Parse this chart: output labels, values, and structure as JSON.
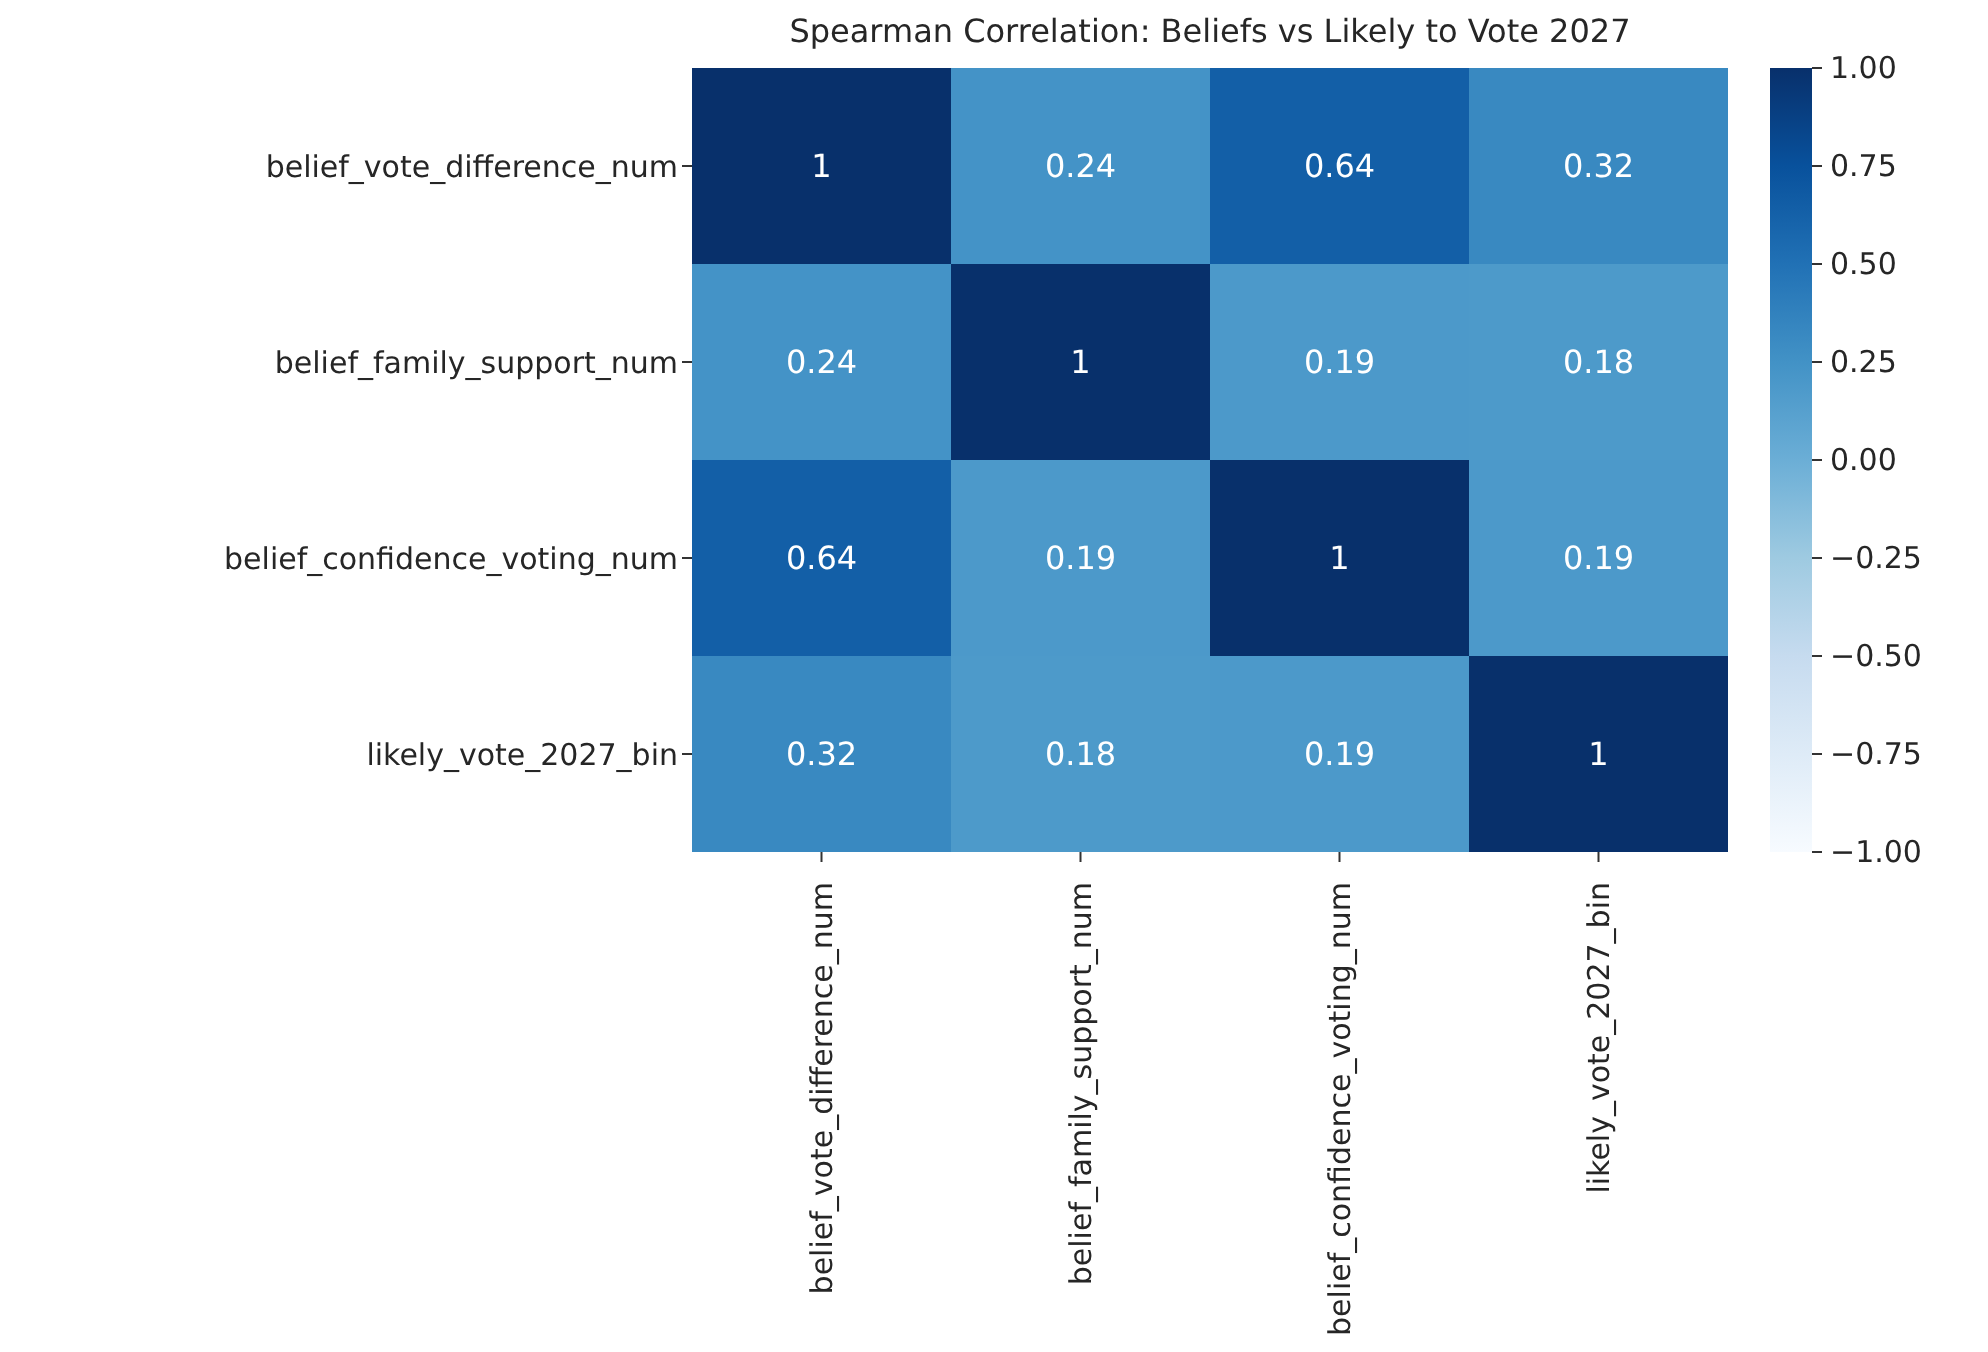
{
  "chart_data": {
    "type": "heatmap",
    "title": "Spearman Correlation: Beliefs vs Likely to Vote 2027",
    "categories": [
      "belief_vote_difference_num",
      "belief_family_support_num",
      "belief_confidence_voting_num",
      "likely_vote_2027_bin"
    ],
    "y_categories": [
      "belief_vote_difference_num",
      "belief_family_support_num",
      "belief_confidence_voting_num",
      "likely_vote_2027_bin"
    ],
    "cells": [
      [
        1,
        0.24,
        0.64,
        0.32
      ],
      [
        0.24,
        1,
        0.19,
        0.18
      ],
      [
        0.64,
        0.19,
        1,
        0.19
      ],
      [
        0.32,
        0.18,
        0.19,
        1
      ]
    ],
    "data_labels": true,
    "clim": [
      -1,
      1
    ],
    "cticks": [
      {
        "value": 1,
        "label": "1.00"
      },
      {
        "value": 0.75,
        "label": "0.75"
      },
      {
        "value": 0.5,
        "label": "0.50"
      },
      {
        "value": 0.25,
        "label": "0.25"
      },
      {
        "value": 0,
        "label": "0.00"
      },
      {
        "value": -0.25,
        "label": "−0.25"
      },
      {
        "value": -0.5,
        "label": "−0.50"
      },
      {
        "value": -0.75,
        "label": "−0.75"
      },
      {
        "value": -1,
        "label": "−1.00"
      }
    ]
  }
}
